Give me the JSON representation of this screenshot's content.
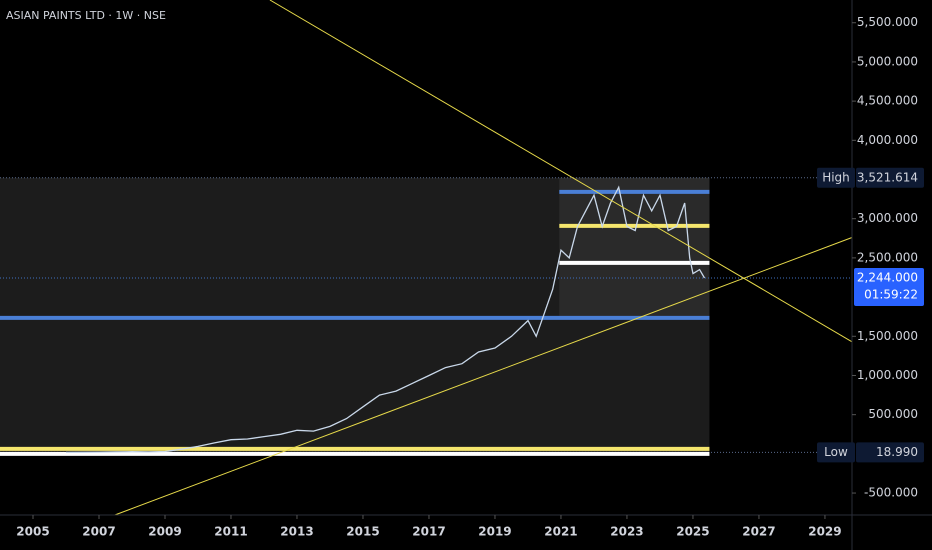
{
  "chart_data": {
    "type": "line",
    "title": "ASIAN PAINTS LTD · 1W · NSE",
    "x": [
      2006,
      2006.5,
      2007,
      2007.5,
      2008,
      2008.5,
      2009,
      2009.5,
      2010,
      2010.5,
      2011,
      2011.5,
      2012,
      2012.5,
      2013,
      2013.5,
      2014,
      2014.5,
      2015,
      2015.5,
      2016,
      2016.5,
      2017,
      2017.5,
      2018,
      2018.5,
      2019,
      2019.5,
      2020,
      2020.25,
      2020.5,
      2020.75,
      2021,
      2021.25,
      2021.5,
      2021.75,
      2022,
      2022.25,
      2022.5,
      2022.75,
      2023,
      2023.25,
      2023.5,
      2023.75,
      2024,
      2024.25,
      2024.5,
      2024.75,
      2024.9,
      2025,
      2025.2,
      2025.35
    ],
    "series": [
      {
        "color": "#c9d8ea",
        "values": [
          18,
          20,
          22,
          25,
          28,
          25,
          30,
          60,
          95,
          140,
          180,
          190,
          220,
          250,
          300,
          290,
          350,
          450,
          600,
          750,
          800,
          900,
          1000,
          1100,
          1150,
          1300,
          1350,
          1500,
          1700,
          1500,
          1800,
          2100,
          2600,
          2500,
          2900,
          3100,
          3300,
          2900,
          3200,
          3400,
          2900,
          2850,
          3300,
          3100,
          3300,
          2850,
          2900,
          3200,
          2500,
          2300,
          2350,
          2244
        ]
      }
    ],
    "xlim": [
      2004,
      2029.82
    ],
    "ylim": [
      -780,
      5790
    ],
    "xticks": [
      2005,
      2007,
      2009,
      2011,
      2013,
      2015,
      2017,
      2019,
      2021,
      2023,
      2025,
      2027,
      2029
    ],
    "yticks": [
      {
        "value": 5500,
        "label": "5,500.000"
      },
      {
        "value": 5000,
        "label": "5,000.000"
      },
      {
        "value": 4500,
        "label": "4,500.000"
      },
      {
        "value": 4000,
        "label": "4,000.000"
      },
      {
        "value": 3000,
        "label": "3,000.000"
      },
      {
        "value": 2500,
        "label": "2,500.000"
      },
      {
        "value": 1500,
        "label": "1,500.000"
      },
      {
        "value": 1000,
        "label": "1,000.000"
      },
      {
        "value": 500,
        "label": "500.000"
      },
      {
        "value": -500,
        "label": "-500.000"
      }
    ],
    "high": {
      "label": "High",
      "value": 3521.614,
      "value_label": "3,521.614"
    },
    "low": {
      "label": "Low",
      "value": 18.99,
      "value_label": "18.990"
    },
    "last": {
      "value": 2244,
      "value_label": "2,244.000",
      "countdown": "01:59:22"
    },
    "range_end": 2025.5,
    "zone": {
      "xlim": [
        2020.95,
        2025.5
      ],
      "ylim": [
        1735,
        3521.614
      ]
    },
    "levels": [
      {
        "value": 3342,
        "color": "#4a7fd6",
        "start": 2020.95
      },
      {
        "value": 2908,
        "color": "#f5e66d",
        "start": 2020.95
      },
      {
        "value": 2436,
        "color": "#ffffff",
        "start": 2020.95
      },
      {
        "value": 1735,
        "color": "#4a7fd6",
        "start": 2004
      },
      {
        "value": 64,
        "color": "#f5e66d",
        "start": 2004
      },
      {
        "value": 0,
        "color": "#ffffff",
        "start": 2004
      }
    ],
    "trendlines": [
      {
        "color": "#e6d94a",
        "points": [
          [
            2012.18,
            5790
          ],
          [
            2029.82,
            1430
          ]
        ]
      },
      {
        "color": "#e6d94a",
        "points": [
          [
            2007.48,
            -780
          ],
          [
            2029.82,
            2760
          ]
        ]
      }
    ]
  }
}
